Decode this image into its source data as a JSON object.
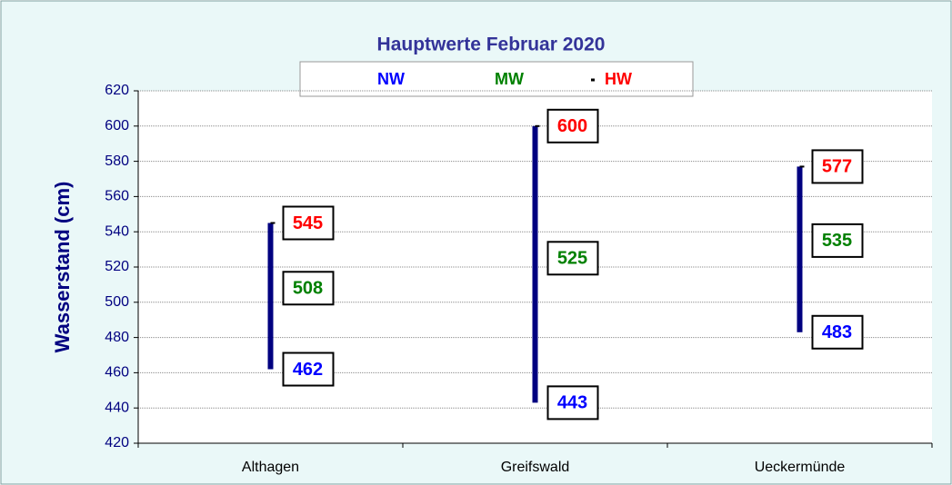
{
  "chart_data": {
    "type": "hilo",
    "title": "Hauptwerte  Februar 2020",
    "y_label": "Wasserstand (cm)",
    "categories": [
      "Althagen",
      "Greifswald",
      "Ueckermünde"
    ],
    "series": [
      {
        "name": "NW",
        "color": "#0000ff",
        "values": [
          462,
          443,
          483
        ]
      },
      {
        "name": "MW",
        "color": "#008000",
        "values": [
          508,
          525,
          535
        ]
      },
      {
        "name": "HW",
        "color": "#ff0000",
        "values": [
          545,
          600,
          577
        ]
      }
    ],
    "bar_color": "#000080",
    "ylim": [
      420,
      620
    ],
    "yticks": [
      420,
      440,
      460,
      480,
      500,
      520,
      540,
      560,
      580,
      600,
      620
    ],
    "grid": true
  }
}
